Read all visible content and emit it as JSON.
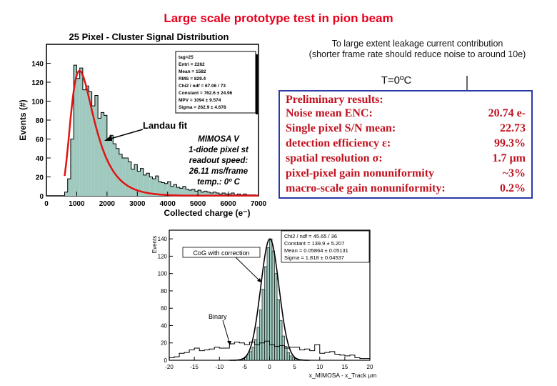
{
  "title": "Large scale prototype test in pion beam",
  "note": {
    "line1": "To large extent leakage current contribution",
    "line2": "(shorter frame rate should reduce noise to around 10e)"
  },
  "temperature_label": "T=0ºC",
  "results": {
    "heading": "Preliminary results:",
    "rows": [
      {
        "label": "Noise mean ENC:",
        "value": "20.74 e-"
      },
      {
        "label": "Single pixel S/N mean:",
        "value": "22.73"
      },
      {
        "label": "detection efficiency ε:",
        "value": "99.3%"
      },
      {
        "label": "spatial resolution σ:",
        "value": "1.7 µm"
      },
      {
        "label": "pixel-pixel gain nonuniformity",
        "value": "~3%"
      },
      {
        "label": "macro-scale gain nonuniformity:",
        "value": "0.2%"
      }
    ]
  },
  "colors": {
    "title": "#e8001c",
    "results_text": "#c1121f",
    "results_border": "#2b3aa8",
    "fill": "#9fc9be",
    "fit": "#e01414"
  },
  "chart_data": [
    {
      "type": "bar",
      "title": "25 Pixel - Cluster Signal Distribution",
      "xlabel": "Collected charge (e⁻)",
      "ylabel": "Events (#)",
      "xlim": [
        0,
        7000
      ],
      "ylim": [
        0,
        160
      ],
      "x_ticks": [
        0,
        1000,
        2000,
        3000,
        4000,
        5000,
        6000,
        7000
      ],
      "y_ticks": [
        0,
        20,
        40,
        60,
        80,
        100,
        120,
        140
      ],
      "bin_width": 100,
      "x": [
        600,
        700,
        800,
        900,
        1000,
        1100,
        1200,
        1300,
        1400,
        1500,
        1600,
        1700,
        1800,
        1900,
        2000,
        2100,
        2200,
        2300,
        2400,
        2500,
        2600,
        2700,
        2800,
        2900,
        3000,
        3100,
        3200,
        3300,
        3400,
        3500,
        3600,
        3700,
        3800,
        3900,
        4000,
        4100,
        4200,
        4300,
        4400,
        4500,
        4600,
        4700,
        4800,
        4900,
        5000,
        5100,
        5200,
        5300,
        5400,
        5500,
        5600,
        5700,
        5800,
        5900,
        6000,
        6100,
        6200,
        6300,
        6400,
        6500,
        6600,
        6700,
        6800,
        6900
      ],
      "values": [
        4,
        18,
        60,
        138,
        124,
        135,
        112,
        116,
        110,
        95,
        106,
        82,
        88,
        85,
        60,
        64,
        55,
        50,
        44,
        40,
        40,
        36,
        28,
        33,
        26,
        29,
        22,
        24,
        20,
        18,
        21,
        15,
        14,
        13,
        15,
        10,
        12,
        9,
        8,
        10,
        7,
        6,
        7,
        5,
        6,
        4,
        5,
        4,
        3,
        4,
        3,
        2,
        3,
        2,
        2,
        3,
        1,
        2,
        1,
        2,
        1,
        1,
        1,
        0
      ],
      "fit_label": "Landau fit",
      "stats": [
        "tag=25",
        "Entri = 2262",
        "Mean  = 1582",
        "RMS   = 829.4",
        "Chi2 / ndf = 67.06 / 73",
        "Constant = 762.6 ± 24.96",
        "MPV    = 1094 ± 9.574",
        "Sigma   = 262.9 ± 4.678"
      ],
      "annotation": [
        "MIMOSA V",
        "1-diode pixel st",
        "readout speed:",
        "26.11 ms/frame",
        "temp.: 0º C"
      ]
    },
    {
      "type": "bar",
      "title": "",
      "xlabel": "x_MIMOSA - x_Track µm",
      "ylabel": "Events",
      "xlim": [
        -20,
        20
      ],
      "ylim": [
        0,
        150
      ],
      "x_ticks": [
        -20,
        -15,
        -10,
        -5,
        0,
        5,
        10,
        15,
        20
      ],
      "y_ticks": [
        0,
        20,
        40,
        60,
        80,
        100,
        120,
        140
      ],
      "bin_width": 0.5,
      "x": [
        -6,
        -5.5,
        -5,
        -4.5,
        -4,
        -3.5,
        -3,
        -2.5,
        -2,
        -1.5,
        -1,
        -0.5,
        0,
        0.5,
        1,
        1.5,
        2,
        2.5,
        3,
        3.5,
        4,
        4.5,
        5,
        5.5
      ],
      "values": [
        1,
        2,
        3,
        6,
        10,
        15,
        24,
        38,
        58,
        82,
        108,
        130,
        140,
        126,
        100,
        70,
        46,
        28,
        16,
        9,
        5,
        3,
        2,
        1
      ],
      "binary_x": [
        -20,
        -19,
        -18,
        -17,
        -16,
        -15,
        -14,
        -13,
        -12,
        -11,
        -10,
        -9,
        -8,
        -7,
        -6,
        -5,
        -4,
        -3,
        -2,
        -1,
        0,
        1,
        2,
        3,
        4,
        5,
        6,
        7,
        8,
        9,
        10,
        11,
        12,
        13,
        14,
        15,
        16,
        17,
        18,
        19
      ],
      "binary_values": [
        3,
        4,
        8,
        9,
        12,
        14,
        11,
        12,
        13,
        15,
        14,
        14,
        19,
        21,
        20,
        18,
        21,
        18,
        20,
        22,
        18,
        16,
        17,
        14,
        15,
        15,
        12,
        13,
        11,
        18,
        8,
        9,
        10,
        7,
        6,
        5,
        6,
        3,
        2,
        2
      ],
      "legend": [
        "CoG with correction",
        "Binary"
      ],
      "stats": [
        "Chi2 / ndf = 45.65 / 36",
        "Constant = 139.9 ± 5.207",
        "Mean    = 0.05864 ± 0.05131",
        "Sigma   = 1.818 ± 0.04537"
      ]
    }
  ]
}
